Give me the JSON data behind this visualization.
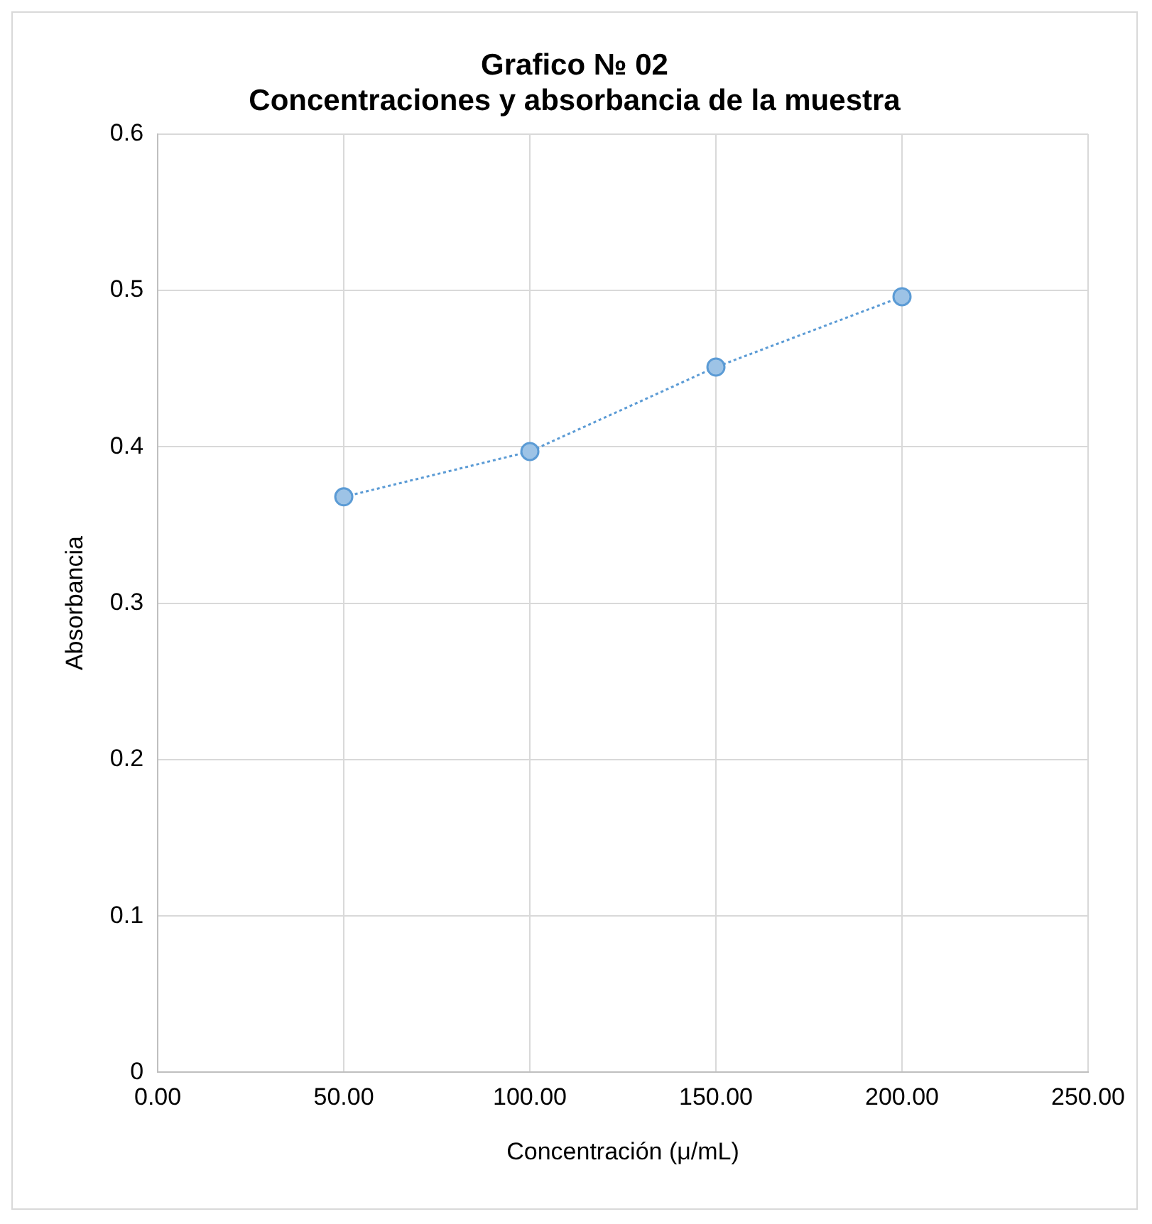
{
  "chart_data": {
    "type": "scatter",
    "title": [
      "Grafico № 02",
      "Concentraciones y absorbancia de la muestra"
    ],
    "xlabel": "Concentración (μ/mL)",
    "ylabel": "Absorbancia",
    "x": [
      50,
      100,
      150,
      200
    ],
    "series": [
      {
        "type": "line",
        "color": "#5b9bd5",
        "values": [
          0.368,
          0.397,
          0.451,
          0.496
        ]
      }
    ],
    "xlim": [
      0,
      250
    ],
    "xticks": [
      {
        "value": 0,
        "label": "0.00"
      },
      {
        "value": 50,
        "label": "50.00"
      },
      {
        "value": 100,
        "label": "100.00"
      },
      {
        "value": 150,
        "label": "150.00"
      },
      {
        "value": 200,
        "label": "200.00"
      },
      {
        "value": 250,
        "label": "250.00"
      }
    ],
    "ylim": [
      0,
      0.6
    ],
    "yticks": [
      0,
      0.1,
      0.2,
      0.3,
      0.4,
      0.5,
      0.6
    ],
    "grid": true,
    "legend": false,
    "marker": "circle",
    "line_style": "dotted"
  }
}
